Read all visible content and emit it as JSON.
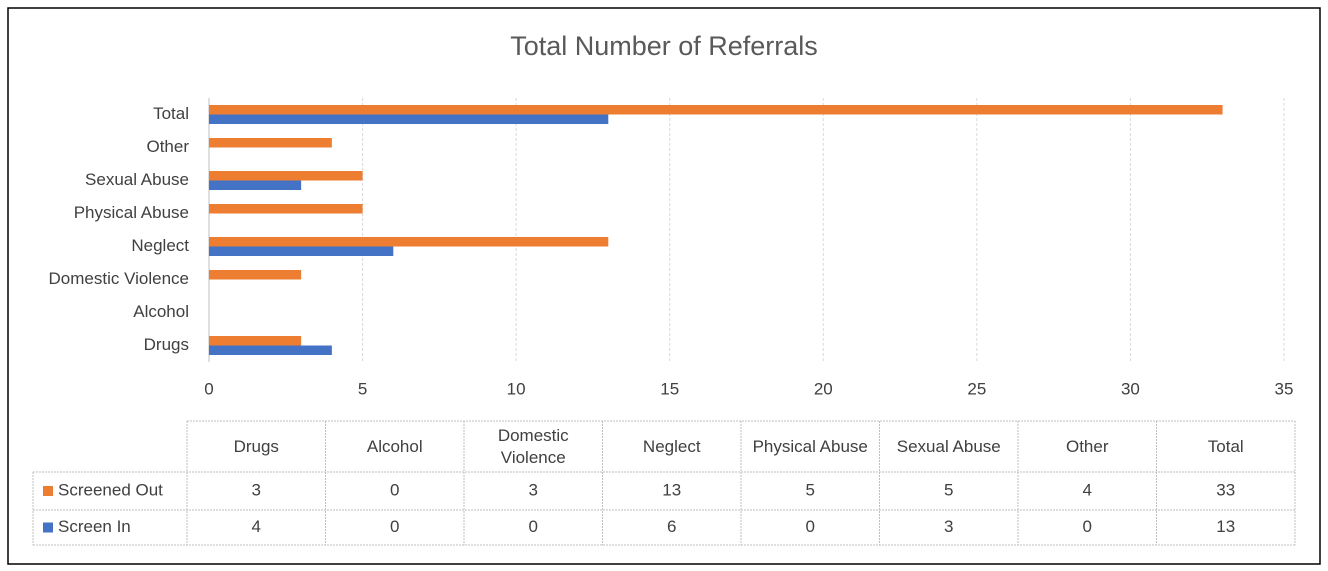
{
  "chart_data": {
    "type": "bar",
    "orientation": "horizontal",
    "title": "Total Number of Referrals",
    "categories": [
      "Drugs",
      "Alcohol",
      "Domestic Violence",
      "Neglect",
      "Physical Abuse",
      "Sexual Abuse",
      "Other",
      "Total"
    ],
    "series": [
      {
        "name": "Screened Out",
        "color": "#ed7d31",
        "values": [
          3,
          0,
          3,
          13,
          5,
          5,
          4,
          33
        ]
      },
      {
        "name": "Screen In",
        "color": "#4472c4",
        "values": [
          4,
          0,
          0,
          6,
          0,
          3,
          0,
          13
        ]
      }
    ],
    "xlim": [
      0,
      35
    ],
    "xticks": [
      0,
      5,
      10,
      15,
      20,
      25,
      30,
      35
    ],
    "grid": true
  }
}
